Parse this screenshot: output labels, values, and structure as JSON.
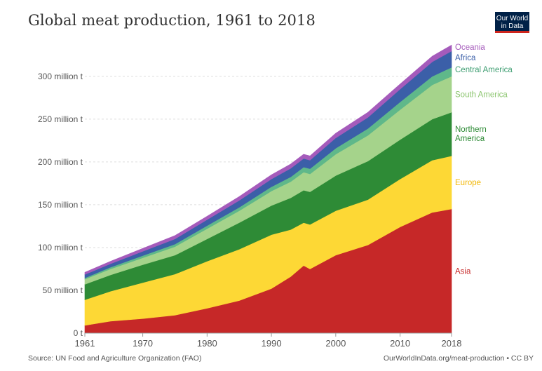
{
  "header": {
    "title": "Global meat production, 1961 to 2018",
    "logo_line1": "Our World",
    "logo_line2": "in Data"
  },
  "footer": {
    "source": "Source: UN Food and Agriculture Organization (FAO)",
    "url": "OurWorldInData.org/meat-production • CC BY"
  },
  "chart_data": {
    "type": "area",
    "stacked": true,
    "title": "Global meat production, 1961 to 2018",
    "xlabel": "",
    "ylabel": "",
    "xlim": [
      1961,
      2018
    ],
    "ylim": [
      0,
      340
    ],
    "unit": "million t",
    "x": [
      1961,
      1965,
      1970,
      1975,
      1980,
      1985,
      1990,
      1993,
      1995,
      1996,
      2000,
      2005,
      2010,
      2015,
      2018
    ],
    "x_tick_labels": [
      "1961",
      "1970",
      "1980",
      "1990",
      "2000",
      "2010",
      "2018"
    ],
    "x_tick_values": [
      1961,
      1970,
      1980,
      1990,
      2000,
      2010,
      2018
    ],
    "y_tick_labels": [
      "0 t",
      "50 million t",
      "100 million t",
      "150 million t",
      "200 million t",
      "250 million t",
      "300 million t"
    ],
    "y_tick_values": [
      0,
      50,
      100,
      150,
      200,
      250,
      300
    ],
    "grid": true,
    "series": [
      {
        "name": "Asia",
        "color": "#c62828",
        "values": [
          9,
          14,
          17,
          21,
          29,
          38,
          52,
          66,
          79,
          75,
          91,
          103,
          124,
          141,
          145
        ]
      },
      {
        "name": "Europe",
        "color": "#fdd835",
        "values": [
          30,
          35,
          42,
          48,
          55,
          60,
          63,
          55,
          50,
          52,
          52,
          53,
          56,
          61,
          62
        ]
      },
      {
        "name": "Northern\nAmerica",
        "color": "#2e8b36",
        "values": [
          18,
          19,
          21,
          22,
          26,
          31,
          34,
          37,
          38,
          38,
          41,
          45,
          46,
          48,
          51
        ]
      },
      {
        "name": "South America",
        "color": "#a5d38b",
        "values": [
          6,
          7,
          8,
          10,
          12,
          14,
          17,
          19,
          21,
          21,
          25,
          30,
          35,
          40,
          42
        ]
      },
      {
        "name": "Central America",
        "color": "#5fb88a",
        "values": [
          1.5,
          2,
          2.5,
          3,
          3.5,
          4,
          5,
          5.5,
          6,
          6,
          7,
          8,
          9,
          10,
          10.5
        ]
      },
      {
        "name": "Africa",
        "color": "#3b5fa8",
        "values": [
          4,
          4,
          5,
          6,
          7,
          8,
          9,
          10,
          10,
          10,
          12,
          13,
          15,
          17,
          19
        ]
      },
      {
        "name": "Oceania",
        "color": "#a55bbb",
        "values": [
          2.5,
          3,
          3.5,
          4,
          4,
          4.5,
          5,
          5,
          5,
          5,
          5.5,
          6,
          6,
          6.5,
          7
        ]
      }
    ]
  }
}
